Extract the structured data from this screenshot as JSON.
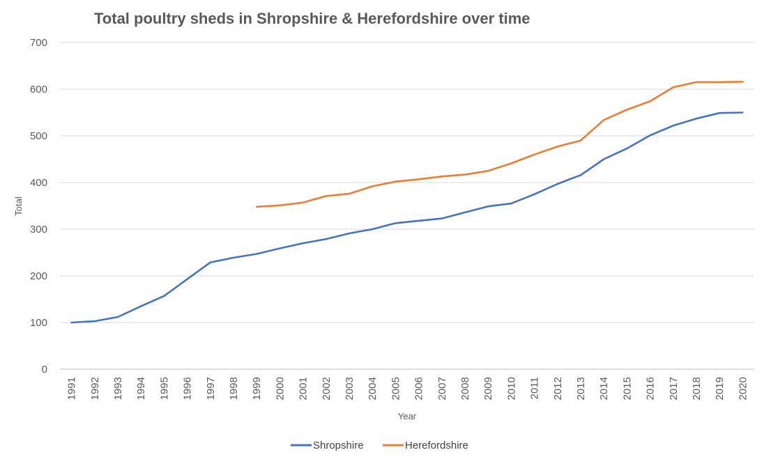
{
  "chart_data": {
    "type": "line",
    "title": "Total poultry sheds in Shropshire & Herefordshire over time",
    "xlabel": "Year",
    "ylabel": "Total",
    "ylim": [
      0,
      700
    ],
    "yticks": [
      0,
      100,
      200,
      300,
      400,
      500,
      600,
      700
    ],
    "grid": true,
    "legend_position": "bottom",
    "categories": [
      "1991",
      "1992",
      "1993",
      "1994",
      "1995",
      "1996",
      "1997",
      "1998",
      "1999",
      "2000",
      "2001",
      "2002",
      "2003",
      "2004",
      "2005",
      "2006",
      "2007",
      "2008",
      "2009",
      "2010",
      "2011",
      "2012",
      "2013",
      "2014",
      "2015",
      "2016",
      "2017",
      "2018",
      "2019",
      "2020"
    ],
    "series": [
      {
        "name": "Shropshire",
        "color": "#4472C4",
        "values": [
          100,
          103,
          112,
          135,
          157,
          193,
          229,
          239,
          247,
          259,
          270,
          279,
          291,
          300,
          313,
          318,
          323,
          336,
          349,
          355,
          375,
          397,
          416,
          450,
          473,
          501,
          522,
          537,
          549,
          550
        ]
      },
      {
        "name": "Herefordshire",
        "color": "#ED7D31",
        "values": [
          null,
          null,
          null,
          null,
          null,
          null,
          null,
          null,
          348,
          351,
          357,
          371,
          376,
          392,
          402,
          407,
          413,
          417,
          425,
          441,
          460,
          477,
          490,
          534,
          556,
          574,
          604,
          615,
          615,
          616
        ]
      }
    ]
  }
}
